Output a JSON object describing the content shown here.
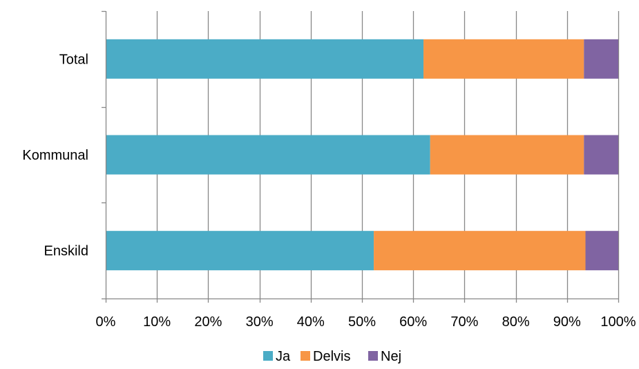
{
  "chart_data": {
    "type": "bar",
    "orientation": "horizontal",
    "stacked": "percent",
    "categories": [
      "Total",
      "Kommunal",
      "Enskild"
    ],
    "series": [
      {
        "name": "Ja",
        "color": "#4BACC6",
        "values": [
          62,
          63.3,
          52.3
        ]
      },
      {
        "name": "Delvis",
        "color": "#F79646",
        "values": [
          31.3,
          30,
          41.3
        ]
      },
      {
        "name": "Nej",
        "color": "#8064A2",
        "values": [
          6.7,
          6.7,
          6.4
        ]
      }
    ],
    "x_ticks": [
      "0%",
      "10%",
      "20%",
      "30%",
      "40%",
      "50%",
      "60%",
      "70%",
      "80%",
      "90%",
      "100%"
    ],
    "xlim": [
      0,
      100
    ],
    "grid": true,
    "legend_position": "bottom",
    "title": "",
    "xlabel": "",
    "ylabel": ""
  }
}
